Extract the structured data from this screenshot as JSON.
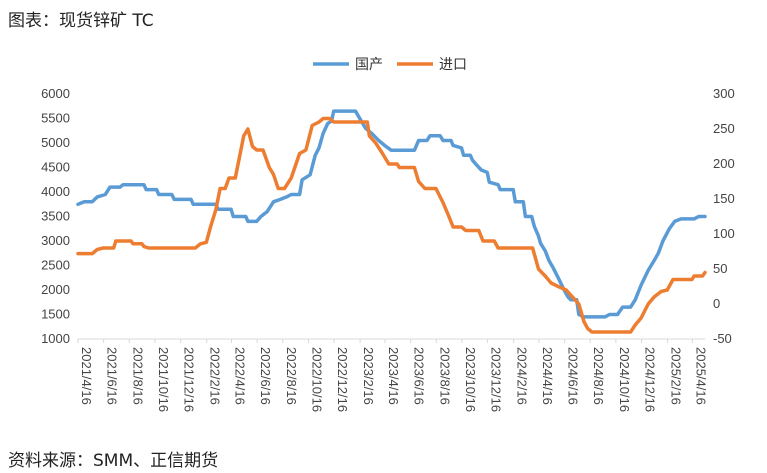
{
  "title": "图表：现货锌矿 TC",
  "source": "资料来源：SMM、正信期货",
  "chart_data": {
    "type": "line",
    "legend_position": "top-center",
    "grid": false,
    "y_left": {
      "min": 1000,
      "max": 6000,
      "step": 500,
      "ticks": [
        "1000",
        "1500",
        "2000",
        "2500",
        "3000",
        "3500",
        "4000",
        "4500",
        "5000",
        "5500",
        "6000"
      ]
    },
    "y_right": {
      "min": -50,
      "max": 300,
      "step": 50,
      "ticks": [
        "-50",
        "0",
        "50",
        "100",
        "150",
        "200",
        "250",
        "300"
      ]
    },
    "x_range": [
      "2021/4/16",
      "2025/5/16"
    ],
    "x_ticks": [
      "2021/4/16",
      "2021/6/16",
      "2021/8/16",
      "2021/10/16",
      "2021/12/16",
      "2022/2/16",
      "2022/4/16",
      "2022/6/16",
      "2022/8/16",
      "2022/10/16",
      "2022/12/16",
      "2023/2/16",
      "2023/4/16",
      "2023/6/16",
      "2023/8/16",
      "2023/10/16",
      "2023/12/16",
      "2024/2/16",
      "2024/4/16",
      "2024/6/16",
      "2024/8/16",
      "2024/10/16",
      "2024/12/16",
      "2025/2/16",
      "2025/4/16"
    ],
    "series": [
      {
        "name": "国产",
        "axis": "left",
        "color": "#5B9BD5",
        "points": [
          [
            "2021/4/16",
            3750
          ],
          [
            "2021/5/1",
            3800
          ],
          [
            "2021/5/20",
            3800
          ],
          [
            "2021/6/1",
            3900
          ],
          [
            "2021/6/20",
            3950
          ],
          [
            "2021/7/1",
            4100
          ],
          [
            "2021/7/25",
            4100
          ],
          [
            "2021/8/1",
            4150
          ],
          [
            "2021/9/20",
            4150
          ],
          [
            "2021/9/25",
            4050
          ],
          [
            "2021/10/20",
            4050
          ],
          [
            "2021/10/25",
            3950
          ],
          [
            "2021/11/25",
            3950
          ],
          [
            "2021/12/1",
            3850
          ],
          [
            "2022/1/10",
            3850
          ],
          [
            "2022/1/15",
            3750
          ],
          [
            "2022/3/10",
            3750
          ],
          [
            "2022/3/15",
            3650
          ],
          [
            "2022/4/15",
            3650
          ],
          [
            "2022/4/20",
            3500
          ],
          [
            "2022/5/20",
            3500
          ],
          [
            "2022/5/25",
            3400
          ],
          [
            "2022/6/15",
            3400
          ],
          [
            "2022/6/25",
            3500
          ],
          [
            "2022/7/10",
            3600
          ],
          [
            "2022/7/25",
            3800
          ],
          [
            "2022/8/10",
            3850
          ],
          [
            "2022/8/25",
            3900
          ],
          [
            "2022/9/5",
            3950
          ],
          [
            "2022/9/25",
            3950
          ],
          [
            "2022/10/1",
            4250
          ],
          [
            "2022/10/20",
            4350
          ],
          [
            "2022/11/1",
            4750
          ],
          [
            "2022/11/10",
            4900
          ],
          [
            "2022/11/20",
            5200
          ],
          [
            "2022/12/1",
            5400
          ],
          [
            "2022/12/10",
            5450
          ],
          [
            "2022/12/15",
            5650
          ],
          [
            "2023/2/5",
            5650
          ],
          [
            "2023/2/15",
            5500
          ],
          [
            "2023/3/1",
            5300
          ],
          [
            "2023/3/15",
            5200
          ],
          [
            "2023/4/1",
            5050
          ],
          [
            "2023/4/15",
            4950
          ],
          [
            "2023/5/1",
            4850
          ],
          [
            "2023/6/25",
            4850
          ],
          [
            "2023/7/5",
            5050
          ],
          [
            "2023/7/25",
            5050
          ],
          [
            "2023/8/1",
            5150
          ],
          [
            "2023/8/25",
            5150
          ],
          [
            "2023/9/1",
            5050
          ],
          [
            "2023/9/20",
            5050
          ],
          [
            "2023/9/25",
            4950
          ],
          [
            "2023/10/15",
            4900
          ],
          [
            "2023/10/20",
            4750
          ],
          [
            "2023/11/5",
            4750
          ],
          [
            "2023/11/10",
            4650
          ],
          [
            "2023/11/20",
            4550
          ],
          [
            "2023/12/1",
            4450
          ],
          [
            "2023/12/15",
            4400
          ],
          [
            "2023/12/20",
            4200
          ],
          [
            "2024/1/10",
            4150
          ],
          [
            "2024/1/15",
            4050
          ],
          [
            "2024/2/15",
            4050
          ],
          [
            "2024/2/20",
            3800
          ],
          [
            "2024/3/10",
            3800
          ],
          [
            "2024/3/15",
            3500
          ],
          [
            "2024/3/30",
            3500
          ],
          [
            "2024/4/5",
            3300
          ],
          [
            "2024/4/15",
            3100
          ],
          [
            "2024/4/20",
            2950
          ],
          [
            "2024/5/1",
            2800
          ],
          [
            "2024/5/10",
            2600
          ],
          [
            "2024/5/20",
            2450
          ],
          [
            "2024/6/1",
            2250
          ],
          [
            "2024/6/15",
            2000
          ],
          [
            "2024/6/25",
            1850
          ],
          [
            "2024/7/1",
            1800
          ],
          [
            "2024/7/15",
            1800
          ],
          [
            "2024/7/20",
            1500
          ],
          [
            "2024/8/1",
            1450
          ],
          [
            "2024/9/20",
            1450
          ],
          [
            "2024/10/1",
            1500
          ],
          [
            "2024/10/20",
            1500
          ],
          [
            "2024/11/1",
            1650
          ],
          [
            "2024/11/20",
            1650
          ],
          [
            "2024/12/1",
            1800
          ],
          [
            "2024/12/15",
            2100
          ],
          [
            "2025/1/1",
            2400
          ],
          [
            "2025/1/15",
            2600
          ],
          [
            "2025/1/25",
            2750
          ],
          [
            "2025/2/5",
            3000
          ],
          [
            "2025/2/20",
            3250
          ],
          [
            "2025/3/5",
            3400
          ],
          [
            "2025/3/20",
            3450
          ],
          [
            "2025/4/20",
            3450
          ],
          [
            "2025/5/1",
            3500
          ],
          [
            "2025/5/16",
            3500
          ]
        ]
      },
      {
        "name": "进口",
        "axis": "right",
        "color": "#ED7D31",
        "points": [
          [
            "2021/4/16",
            72
          ],
          [
            "2021/5/20",
            72
          ],
          [
            "2021/6/1",
            78
          ],
          [
            "2021/6/15",
            80
          ],
          [
            "2021/7/10",
            80
          ],
          [
            "2021/7/15",
            90
          ],
          [
            "2021/8/20",
            90
          ],
          [
            "2021/8/25",
            86
          ],
          [
            "2021/9/15",
            86
          ],
          [
            "2021/9/20",
            82
          ],
          [
            "2021/10/1",
            80
          ],
          [
            "2022/1/20",
            80
          ],
          [
            "2022/2/1",
            86
          ],
          [
            "2022/2/15",
            88
          ],
          [
            "2022/2/25",
            110
          ],
          [
            "2022/3/10",
            135
          ],
          [
            "2022/3/20",
            165
          ],
          [
            "2022/4/1",
            165
          ],
          [
            "2022/4/10",
            180
          ],
          [
            "2022/4/25",
            180
          ],
          [
            "2022/5/5",
            210
          ],
          [
            "2022/5/15",
            240
          ],
          [
            "2022/5/25",
            250
          ],
          [
            "2022/6/5",
            225
          ],
          [
            "2022/6/15",
            220
          ],
          [
            "2022/6/30",
            220
          ],
          [
            "2022/7/15",
            195
          ],
          [
            "2022/7/25",
            185
          ],
          [
            "2022/8/5",
            165
          ],
          [
            "2022/8/20",
            165
          ],
          [
            "2022/9/5",
            180
          ],
          [
            "2022/9/25",
            215
          ],
          [
            "2022/10/10",
            220
          ],
          [
            "2022/10/25",
            255
          ],
          [
            "2022/11/10",
            260
          ],
          [
            "2022/11/20",
            265
          ],
          [
            "2022/12/5",
            265
          ],
          [
            "2022/12/15",
            260
          ],
          [
            "2023/3/5",
            260
          ],
          [
            "2023/3/10",
            240
          ],
          [
            "2023/3/25",
            230
          ],
          [
            "2023/4/10",
            215
          ],
          [
            "2023/4/25",
            200
          ],
          [
            "2023/5/15",
            200
          ],
          [
            "2023/5/20",
            195
          ],
          [
            "2023/6/25",
            195
          ],
          [
            "2023/7/5",
            175
          ],
          [
            "2023/7/20",
            165
          ],
          [
            "2023/8/15",
            165
          ],
          [
            "2023/9/1",
            145
          ],
          [
            "2023/9/15",
            125
          ],
          [
            "2023/9/25",
            110
          ],
          [
            "2023/10/15",
            110
          ],
          [
            "2023/10/25",
            105
          ],
          [
            "2023/11/25",
            105
          ],
          [
            "2023/12/5",
            90
          ],
          [
            "2024/1/1",
            90
          ],
          [
            "2024/1/10",
            80
          ],
          [
            "2024/4/1",
            80
          ],
          [
            "2024/4/15",
            50
          ],
          [
            "2024/5/1",
            40
          ],
          [
            "2024/5/15",
            30
          ],
          [
            "2024/6/1",
            25
          ],
          [
            "2024/6/20",
            20
          ],
          [
            "2024/7/5",
            10
          ],
          [
            "2024/7/20",
            0
          ],
          [
            "2024/8/1",
            -25
          ],
          [
            "2024/8/10",
            -35
          ],
          [
            "2024/8/20",
            -40
          ],
          [
            "2024/11/20",
            -40
          ],
          [
            "2024/12/1",
            -30
          ],
          [
            "2024/12/15",
            -20
          ],
          [
            "2025/1/1",
            0
          ],
          [
            "2025/1/15",
            10
          ],
          [
            "2025/2/1",
            18
          ],
          [
            "2025/2/15",
            20
          ],
          [
            "2025/3/1",
            35
          ],
          [
            "2025/4/15",
            35
          ],
          [
            "2025/4/20",
            40
          ],
          [
            "2025/5/10",
            40
          ],
          [
            "2025/5/16",
            45
          ]
        ]
      }
    ]
  }
}
